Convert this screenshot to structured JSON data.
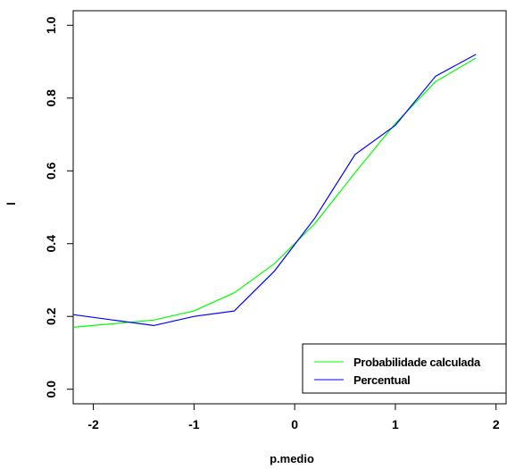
{
  "chart_data": {
    "type": "line",
    "xlabel": "p.medio",
    "ylabel": "l",
    "xlim": [
      -2.2,
      2.1
    ],
    "ylim": [
      -0.04,
      1.04
    ],
    "x_ticks": [
      -2,
      -1,
      0,
      1,
      2
    ],
    "x_tick_labels": [
      "-2",
      "-1",
      "0",
      "1",
      "2"
    ],
    "y_ticks": [
      0.0,
      0.2,
      0.4,
      0.6,
      0.8,
      1.0
    ],
    "y_tick_labels": [
      "0.0",
      "0.2",
      "0.4",
      "0.6",
      "0.8",
      "1.0"
    ],
    "grid": false,
    "legend_position": "bottom-right",
    "series": [
      {
        "name": "Probabilidade calculada",
        "color": "#00ff00",
        "x": [
          -2.2,
          -1.4,
          -1.0,
          -0.6,
          -0.2,
          0.2,
          0.6,
          1.0,
          1.4,
          1.8
        ],
        "y": [
          0.17,
          0.19,
          0.215,
          0.265,
          0.345,
          0.455,
          0.595,
          0.73,
          0.845,
          0.91
        ]
      },
      {
        "name": "Percentual",
        "color": "#0000ff",
        "x": [
          -2.2,
          -1.4,
          -1.0,
          -0.6,
          -0.2,
          0.2,
          0.6,
          1.0,
          1.4,
          1.8
        ],
        "y": [
          0.205,
          0.175,
          0.2,
          0.215,
          0.325,
          0.47,
          0.645,
          0.725,
          0.86,
          0.92
        ]
      }
    ]
  }
}
